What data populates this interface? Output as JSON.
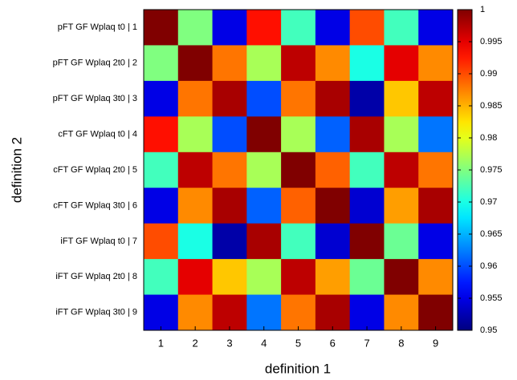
{
  "chart_data": {
    "type": "heatmap",
    "xlabel": "definition 1",
    "ylabel": "definition 2",
    "x_categories": [
      "1",
      "2",
      "3",
      "4",
      "5",
      "6",
      "7",
      "8",
      "9"
    ],
    "y_categories": [
      "pFT GF Wplaq t0 |  1",
      "pFT GF Wplaq 2t0 |  2",
      "pFT GF Wplaq 3t0 |  3",
      "cFT GF Wplaq t0 |  4",
      "cFT GF Wplaq 2t0 |  5",
      "cFT GF Wplaq 3t0 |  6",
      "iFT GF Wplaq t0 |  7",
      "iFT GF Wplaq 2t0 |  8",
      "iFT GF Wplaq 3t0 |  9"
    ],
    "values": [
      [
        1,
        0.975,
        0.955,
        0.993,
        0.972,
        0.955,
        0.99,
        0.972,
        0.955
      ],
      [
        0.975,
        1,
        0.988,
        0.977,
        0.997,
        0.987,
        0.97,
        0.995,
        0.987
      ],
      [
        0.955,
        0.988,
        0.998,
        0.96,
        0.988,
        0.998,
        0.952,
        0.984,
        0.997
      ],
      [
        0.993,
        0.977,
        0.96,
        1,
        0.977,
        0.961,
        0.998,
        0.977,
        0.962
      ],
      [
        0.972,
        0.997,
        0.988,
        0.977,
        1,
        0.989,
        0.972,
        0.997,
        0.988
      ],
      [
        0.955,
        0.987,
        0.998,
        0.961,
        0.989,
        1,
        0.954,
        0.986,
        0.998
      ],
      [
        0.99,
        0.97,
        0.952,
        0.998,
        0.972,
        0.954,
        1,
        0.974,
        0.955
      ],
      [
        0.972,
        0.995,
        0.984,
        0.977,
        0.997,
        0.986,
        0.974,
        1,
        0.987
      ],
      [
        0.955,
        0.987,
        0.997,
        0.962,
        0.988,
        0.998,
        0.955,
        0.987,
        1
      ]
    ],
    "colormap": "jet",
    "zlim": [
      0.95,
      1
    ],
    "zticks": [
      0.95,
      0.955,
      0.96,
      0.965,
      0.97,
      0.975,
      0.98,
      0.985,
      0.99,
      0.995,
      1
    ]
  }
}
